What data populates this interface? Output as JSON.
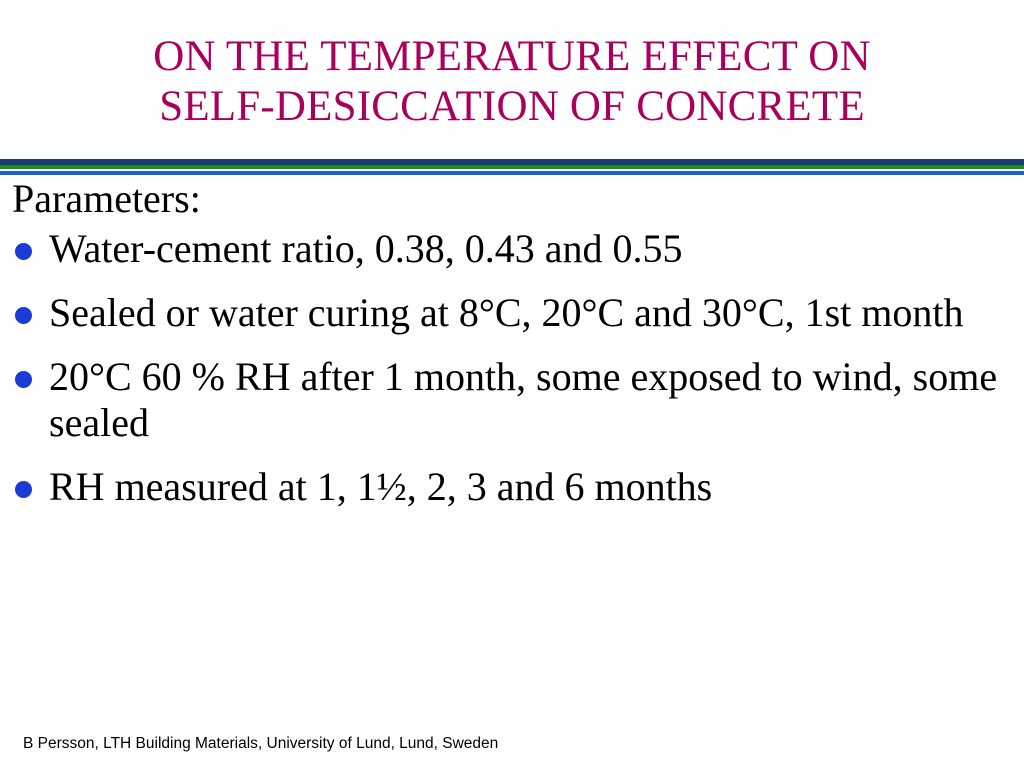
{
  "title": {
    "line1": "ON THE TEMPERATURE EFFECT ON",
    "line2": "SELF-DESICCATION OF CONCRETE"
  },
  "body": {
    "intro": "Parameters:",
    "bullets": [
      "Water-cement ratio, 0.38, 0.43 and 0.55",
      "Sealed or water curing at 8°C, 20°C and 30°C, 1st month",
      "20°C 60 % RH after 1 month, some exposed to wind, some sealed",
      "RH measured at 1, 1½, 2, 3 and 6 months"
    ]
  },
  "footer": "B Persson, LTH Building Materials, University of Lund, Lund, Sweden",
  "colors": {
    "title": "#a8005c",
    "bullet": "#1a3bd6",
    "rule_green": "#1e8a2a",
    "rule_blue": "#1f5fd6",
    "rule_dark": "#1a3b6e"
  }
}
